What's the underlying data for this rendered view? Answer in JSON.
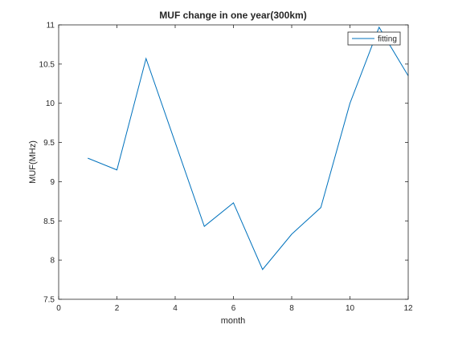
{
  "chart_data": {
    "type": "line",
    "title": "MUF change in one year(300km)",
    "xlabel": "month",
    "ylabel": "MUF(MHz)",
    "xlim": [
      0,
      12
    ],
    "ylim": [
      7.5,
      11
    ],
    "xticks": [
      "0",
      "2",
      "4",
      "6",
      "8",
      "10",
      "12"
    ],
    "yticks": [
      "7.5",
      "8",
      "8.5",
      "9",
      "9.5",
      "10",
      "10.5",
      "11"
    ],
    "grid": false,
    "legend_position": "top-right",
    "series": [
      {
        "name": "fitting",
        "color": "#0072BD",
        "x": [
          1,
          2,
          3,
          4,
          5,
          6,
          7,
          8,
          9,
          10,
          11,
          12
        ],
        "y": [
          9.3,
          9.15,
          10.57,
          9.5,
          8.43,
          8.73,
          7.88,
          8.33,
          8.67,
          10.0,
          10.97,
          10.35
        ]
      }
    ]
  }
}
